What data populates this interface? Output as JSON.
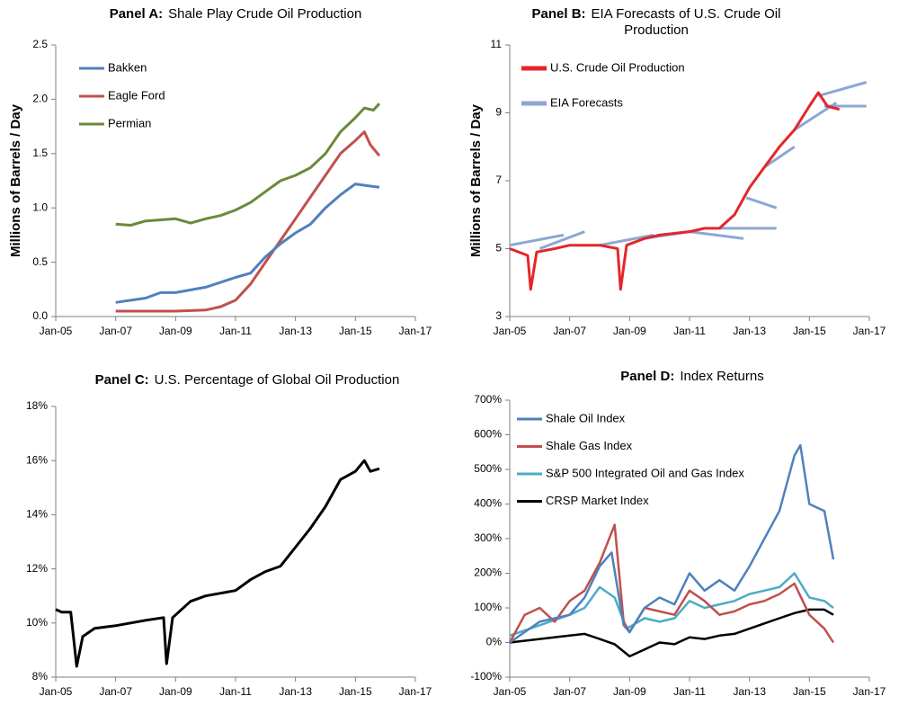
{
  "chart_data": [
    {
      "type": "line",
      "panel": "Panel A:",
      "title": "Shale Play Crude Oil Production",
      "ylabel": "Millions of Barrels / Day",
      "legend": "upper left",
      "xlim": [
        2005,
        2017
      ],
      "xticks": [
        {
          "value": 2005,
          "label": "Jan-05"
        },
        {
          "value": 2007,
          "label": "Jan-07"
        },
        {
          "value": 2009,
          "label": "Jan-09"
        },
        {
          "value": 2011,
          "label": "Jan-11"
        },
        {
          "value": 2013,
          "label": "Jan-13"
        },
        {
          "value": 2015,
          "label": "Jan-15"
        },
        {
          "value": 2017,
          "label": "Jan-17"
        }
      ],
      "ylim": [
        0,
        2.5
      ],
      "yticks": [
        {
          "value": 0,
          "label": "0.0"
        },
        0.5,
        {
          "value": 1,
          "label": "1.0"
        },
        1.5,
        {
          "value": 2,
          "label": "2.0"
        },
        2.5
      ],
      "series": [
        {
          "name": "Bakken",
          "color": "#4f81bd",
          "x": [
            2007,
            2008,
            2008.5,
            2009,
            2010,
            2011,
            2011.5,
            2012,
            2012.5,
            2013,
            2013.5,
            2014,
            2014.5,
            2015,
            2015.5,
            2015.8
          ],
          "values": [
            0.13,
            0.17,
            0.22,
            0.22,
            0.27,
            0.36,
            0.4,
            0.55,
            0.67,
            0.77,
            0.85,
            1.0,
            1.12,
            1.22,
            1.2,
            1.19
          ]
        },
        {
          "name": "Eagle Ford",
          "color": "#c0504d",
          "x": [
            2007,
            2009,
            2010,
            2010.5,
            2011,
            2011.5,
            2012,
            2012.5,
            2013,
            2013.5,
            2014,
            2014.5,
            2015,
            2015.3,
            2015.5,
            2015.8
          ],
          "values": [
            0.05,
            0.05,
            0.06,
            0.09,
            0.15,
            0.3,
            0.5,
            0.7,
            0.9,
            1.1,
            1.3,
            1.5,
            1.62,
            1.7,
            1.58,
            1.48
          ]
        },
        {
          "name": "Permian",
          "color": "#6a8a3a",
          "x": [
            2007,
            2007.5,
            2008,
            2009,
            2009.5,
            2010,
            2010.5,
            2011,
            2011.5,
            2012,
            2012.5,
            2013,
            2013.5,
            2014,
            2014.5,
            2015,
            2015.3,
            2015.6,
            2015.8
          ],
          "values": [
            0.85,
            0.84,
            0.88,
            0.9,
            0.86,
            0.9,
            0.93,
            0.98,
            1.05,
            1.15,
            1.25,
            1.3,
            1.37,
            1.5,
            1.7,
            1.83,
            1.92,
            1.9,
            1.96
          ]
        }
      ]
    },
    {
      "type": "line",
      "panel": "Panel B:",
      "title": "EIA Forecasts of U.S. Crude Oil Production",
      "ylabel": "Millions of Barrels / Day",
      "legend": "upper left",
      "xlim": [
        2005,
        2017
      ],
      "xticks": [
        {
          "value": 2005,
          "label": "Jan-05"
        },
        {
          "value": 2007,
          "label": "Jan-07"
        },
        {
          "value": 2009,
          "label": "Jan-09"
        },
        {
          "value": 2011,
          "label": "Jan-11"
        },
        {
          "value": 2013,
          "label": "Jan-13"
        },
        {
          "value": 2015,
          "label": "Jan-15"
        },
        {
          "value": 2017,
          "label": "Jan-17"
        }
      ],
      "ylim": [
        3,
        11
      ],
      "yticks": [
        3,
        5,
        7,
        9,
        11
      ],
      "series": [
        {
          "name": "U.S. Crude Oil Production",
          "color": "#e3262b",
          "x": [
            2005,
            2005.6,
            2005.7,
            2005.9,
            2006.5,
            2007,
            2008,
            2008.6,
            2008.7,
            2008.9,
            2009.5,
            2010,
            2011,
            2011.5,
            2012,
            2012.5,
            2013,
            2013.5,
            2014,
            2014.5,
            2015,
            2015.3,
            2015.6,
            2016
          ],
          "values": [
            5.0,
            4.8,
            3.8,
            4.9,
            5.0,
            5.1,
            5.1,
            5.0,
            3.8,
            5.1,
            5.3,
            5.4,
            5.5,
            5.6,
            5.6,
            6.0,
            6.8,
            7.4,
            8.0,
            8.5,
            9.2,
            9.6,
            9.2,
            9.1
          ]
        },
        {
          "name": "EIA Forecasts",
          "color": "#8ea6d2",
          "x": [
            2005,
            2006.8,
            null,
            2006,
            2007.5,
            null,
            2008,
            2009.8,
            null,
            2009.5,
            2011,
            null,
            2011,
            2012.8,
            null,
            2012,
            2013.9,
            null,
            2012.9,
            2013.9,
            null,
            2013.5,
            2014.5,
            null,
            2014.5,
            2015.9,
            null,
            2015.3,
            2016.9,
            null,
            2015.5,
            2016.9
          ],
          "values": [
            5.1,
            5.4,
            null,
            5.0,
            5.5,
            null,
            5.1,
            5.4,
            null,
            5.3,
            5.5,
            null,
            5.5,
            5.3,
            null,
            5.6,
            5.6,
            null,
            6.5,
            6.2,
            null,
            7.4,
            8.0,
            null,
            8.5,
            9.3,
            null,
            9.5,
            9.9,
            null,
            9.2,
            9.2
          ]
        }
      ]
    },
    {
      "type": "line",
      "panel": "Panel C:",
      "title": "U.S. Percentage of Global Oil Production",
      "xlim": [
        2005,
        2017
      ],
      "xticks": [
        {
          "value": 2005,
          "label": "Jan-05"
        },
        {
          "value": 2007,
          "label": "Jan-07"
        },
        {
          "value": 2009,
          "label": "Jan-09"
        },
        {
          "value": 2011,
          "label": "Jan-11"
        },
        {
          "value": 2013,
          "label": "Jan-13"
        },
        {
          "value": 2015,
          "label": "Jan-15"
        },
        {
          "value": 2017,
          "label": "Jan-17"
        }
      ],
      "ylim": [
        8,
        18
      ],
      "yticks": [
        {
          "value": 8,
          "label": "8%"
        },
        {
          "value": 10,
          "label": "10%"
        },
        {
          "value": 12,
          "label": "12%"
        },
        {
          "value": 14,
          "label": "14%"
        },
        {
          "value": 16,
          "label": "16%"
        },
        {
          "value": 18,
          "label": "18%"
        }
      ],
      "series": [
        {
          "color": "#000000",
          "x": [
            2005,
            2005.2,
            2005.5,
            2005.7,
            2005.9,
            2006.3,
            2007,
            2007.5,
            2008,
            2008.6,
            2008.7,
            2008.9,
            2009.5,
            2010,
            2010.5,
            2011,
            2011.5,
            2012,
            2012.5,
            2013,
            2013.5,
            2014,
            2014.5,
            2015,
            2015.3,
            2015.5,
            2015.8
          ],
          "values": [
            10.5,
            10.4,
            10.4,
            8.4,
            9.5,
            9.8,
            9.9,
            10.0,
            10.1,
            10.2,
            8.5,
            10.2,
            10.8,
            11.0,
            11.1,
            11.2,
            11.6,
            11.9,
            12.1,
            12.8,
            13.5,
            14.3,
            15.3,
            15.6,
            16.0,
            15.6,
            15.7
          ]
        }
      ]
    },
    {
      "type": "line",
      "panel": "Panel D:",
      "title": "Index Returns",
      "legend": "upper left",
      "xlim": [
        2005,
        2017
      ],
      "xticks": [
        {
          "value": 2005,
          "label": "Jan-05"
        },
        {
          "value": 2007,
          "label": "Jan-07"
        },
        {
          "value": 2009,
          "label": "Jan-09"
        },
        {
          "value": 2011,
          "label": "Jan-11"
        },
        {
          "value": 2013,
          "label": "Jan-13"
        },
        {
          "value": 2015,
          "label": "Jan-15"
        },
        {
          "value": 2017,
          "label": "Jan-17"
        }
      ],
      "ylim": [
        -100,
        700
      ],
      "yticks": [
        {
          "value": -100,
          "label": "-100%"
        },
        {
          "value": 0,
          "label": "0%"
        },
        {
          "value": 100,
          "label": "100%"
        },
        {
          "value": 200,
          "label": "200%"
        },
        {
          "value": 300,
          "label": "300%"
        },
        {
          "value": 400,
          "label": "400%"
        },
        {
          "value": 500,
          "label": "500%"
        },
        {
          "value": 600,
          "label": "600%"
        },
        {
          "value": 700,
          "label": "700%"
        }
      ],
      "series": [
        {
          "name": "Shale Oil Index",
          "color": "#4f81bd",
          "x": [
            2005,
            2006,
            2007,
            2007.5,
            2008,
            2008.4,
            2008.8,
            2009,
            2009.5,
            2010,
            2010.5,
            2011,
            2011.5,
            2012,
            2012.5,
            2013,
            2013.5,
            2014,
            2014.5,
            2014.7,
            2015,
            2015.5,
            2015.8
          ],
          "values": [
            0,
            60,
            80,
            130,
            220,
            260,
            50,
            30,
            100,
            130,
            110,
            200,
            150,
            180,
            150,
            220,
            300,
            380,
            540,
            570,
            400,
            380,
            240
          ]
        },
        {
          "name": "Shale Gas Index",
          "color": "#c0504d",
          "x": [
            2005,
            2005.5,
            2006,
            2006.5,
            2007,
            2007.5,
            2008,
            2008.5,
            2008.8,
            2009,
            2009.5,
            2010,
            2010.5,
            2011,
            2011.5,
            2012,
            2012.5,
            2013,
            2013.5,
            2014,
            2014.5,
            2015,
            2015.5,
            2015.8
          ],
          "values": [
            0,
            80,
            100,
            60,
            120,
            150,
            230,
            340,
            60,
            30,
            100,
            90,
            80,
            150,
            120,
            80,
            90,
            110,
            120,
            140,
            170,
            80,
            40,
            0
          ]
        },
        {
          "name": "S&P 500 Integrated Oil and Gas Index",
          "color": "#4bacc6",
          "x": [
            2005,
            2006,
            2007,
            2007.5,
            2008,
            2008.5,
            2008.9,
            2009.5,
            2010,
            2010.5,
            2011,
            2011.5,
            2012,
            2012.5,
            2013,
            2013.5,
            2014,
            2014.5,
            2015,
            2015.5,
            2015.8
          ],
          "values": [
            20,
            50,
            80,
            100,
            160,
            130,
            40,
            70,
            60,
            70,
            120,
            100,
            110,
            120,
            140,
            150,
            160,
            200,
            130,
            120,
            100
          ]
        },
        {
          "name": "CRSP Market Index",
          "color": "#000000",
          "x": [
            2005,
            2006,
            2007,
            2007.5,
            2008,
            2008.5,
            2009,
            2009.5,
            2010,
            2010.5,
            2011,
            2011.5,
            2012,
            2012.5,
            2013,
            2013.5,
            2014,
            2014.5,
            2015,
            2015.5,
            2015.8
          ],
          "values": [
            0,
            10,
            20,
            25,
            10,
            -5,
            -40,
            -20,
            0,
            -5,
            15,
            10,
            20,
            25,
            40,
            55,
            70,
            85,
            95,
            95,
            80
          ]
        }
      ]
    }
  ]
}
